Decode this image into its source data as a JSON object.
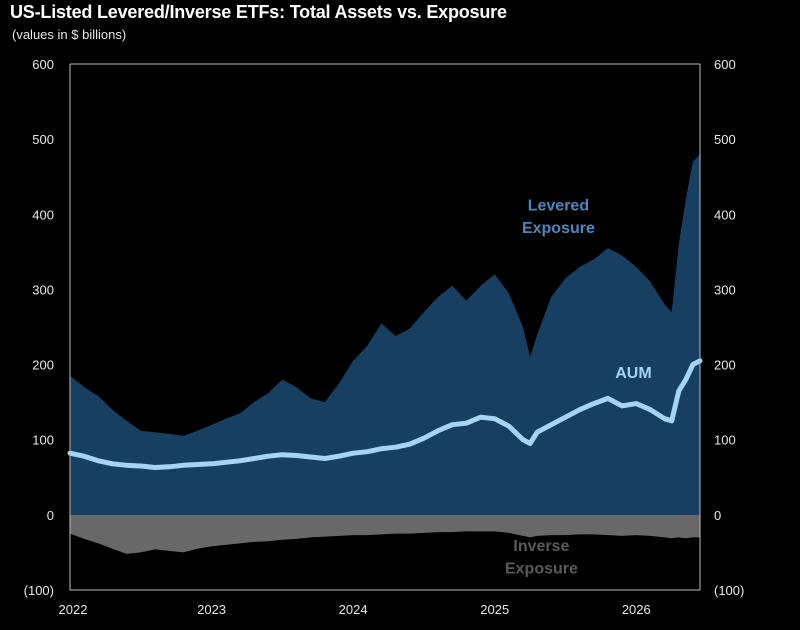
{
  "chart_data": {
    "type": "area",
    "title": "US-Listed Levered/Inverse ETFs: Total Assets vs. Exposure",
    "subtitle": "(values in $ billions)",
    "xlabel": "",
    "ylabel": "",
    "x_tick_labels": [
      "2022",
      "2023",
      "2024",
      "2025",
      "2026"
    ],
    "y_tick_labels": [
      "600",
      "500",
      "400",
      "300",
      "200",
      "100",
      "0",
      "(100)"
    ],
    "y_ticks": [
      600,
      500,
      400,
      300,
      200,
      100,
      0,
      -100
    ],
    "x_ticks": [
      2022,
      2023,
      2024,
      2025,
      2026
    ],
    "ylim": [
      -100,
      600
    ],
    "xlim": [
      2022.0,
      2026.45
    ],
    "grid": false,
    "legend": "none",
    "annotations": [
      {
        "text": "Levered",
        "series": "levered"
      },
      {
        "text": "Exposure",
        "series": "levered"
      },
      {
        "text": "AUM",
        "series": "aum"
      },
      {
        "text": "Inverse",
        "series": "inverse"
      },
      {
        "text": "Exposure",
        "series": "inverse"
      }
    ],
    "x": [
      2022.0,
      2022.1,
      2022.2,
      2022.3,
      2022.4,
      2022.5,
      2022.6,
      2022.7,
      2022.8,
      2022.9,
      2023.0,
      2023.1,
      2023.2,
      2023.3,
      2023.4,
      2023.5,
      2023.6,
      2023.7,
      2023.8,
      2023.9,
      2024.0,
      2024.1,
      2024.2,
      2024.3,
      2024.4,
      2024.5,
      2024.6,
      2024.7,
      2024.8,
      2024.9,
      2025.0,
      2025.1,
      2025.2,
      2025.25,
      2025.3,
      2025.4,
      2025.5,
      2025.6,
      2025.7,
      2025.8,
      2025.9,
      2026.0,
      2026.1,
      2026.2,
      2026.25,
      2026.3,
      2026.35,
      2026.4,
      2026.45
    ],
    "series": [
      {
        "key": "levered",
        "color": "#173f62",
        "values": [
          185,
          170,
          158,
          140,
          125,
          112,
          110,
          108,
          105,
          112,
          120,
          128,
          135,
          150,
          162,
          180,
          170,
          155,
          150,
          175,
          205,
          225,
          255,
          238,
          248,
          270,
          290,
          305,
          285,
          305,
          320,
          295,
          250,
          210,
          240,
          290,
          315,
          330,
          340,
          355,
          345,
          330,
          310,
          280,
          270,
          360,
          420,
          470,
          480
        ]
      },
      {
        "key": "aum",
        "color": "#a6d4f5",
        "values": [
          82,
          78,
          72,
          68,
          66,
          65,
          63,
          64,
          66,
          67,
          68,
          70,
          72,
          75,
          78,
          80,
          79,
          77,
          75,
          78,
          82,
          84,
          88,
          90,
          94,
          102,
          112,
          120,
          122,
          130,
          128,
          118,
          100,
          95,
          110,
          120,
          130,
          140,
          148,
          155,
          145,
          148,
          140,
          128,
          125,
          165,
          180,
          200,
          205
        ]
      },
      {
        "key": "inverse",
        "color": "#686868",
        "values": [
          -25,
          -32,
          -38,
          -45,
          -52,
          -50,
          -46,
          -48,
          -50,
          -45,
          -42,
          -40,
          -38,
          -36,
          -35,
          -33,
          -32,
          -30,
          -29,
          -28,
          -27,
          -27,
          -26,
          -25,
          -25,
          -24,
          -23,
          -23,
          -22,
          -22,
          -22,
          -24,
          -28,
          -30,
          -28,
          -27,
          -27,
          -26,
          -26,
          -27,
          -28,
          -27,
          -28,
          -30,
          -31,
          -30,
          -31,
          -30,
          -30
        ]
      }
    ]
  },
  "colors": {
    "background": "#000000",
    "plot_area": "#000000",
    "levered": "#173f62",
    "levered_label": "#4c87c0",
    "aum": "#a6d4f5",
    "inverse": "#686868",
    "inverse_label": "#5a5a5a"
  }
}
